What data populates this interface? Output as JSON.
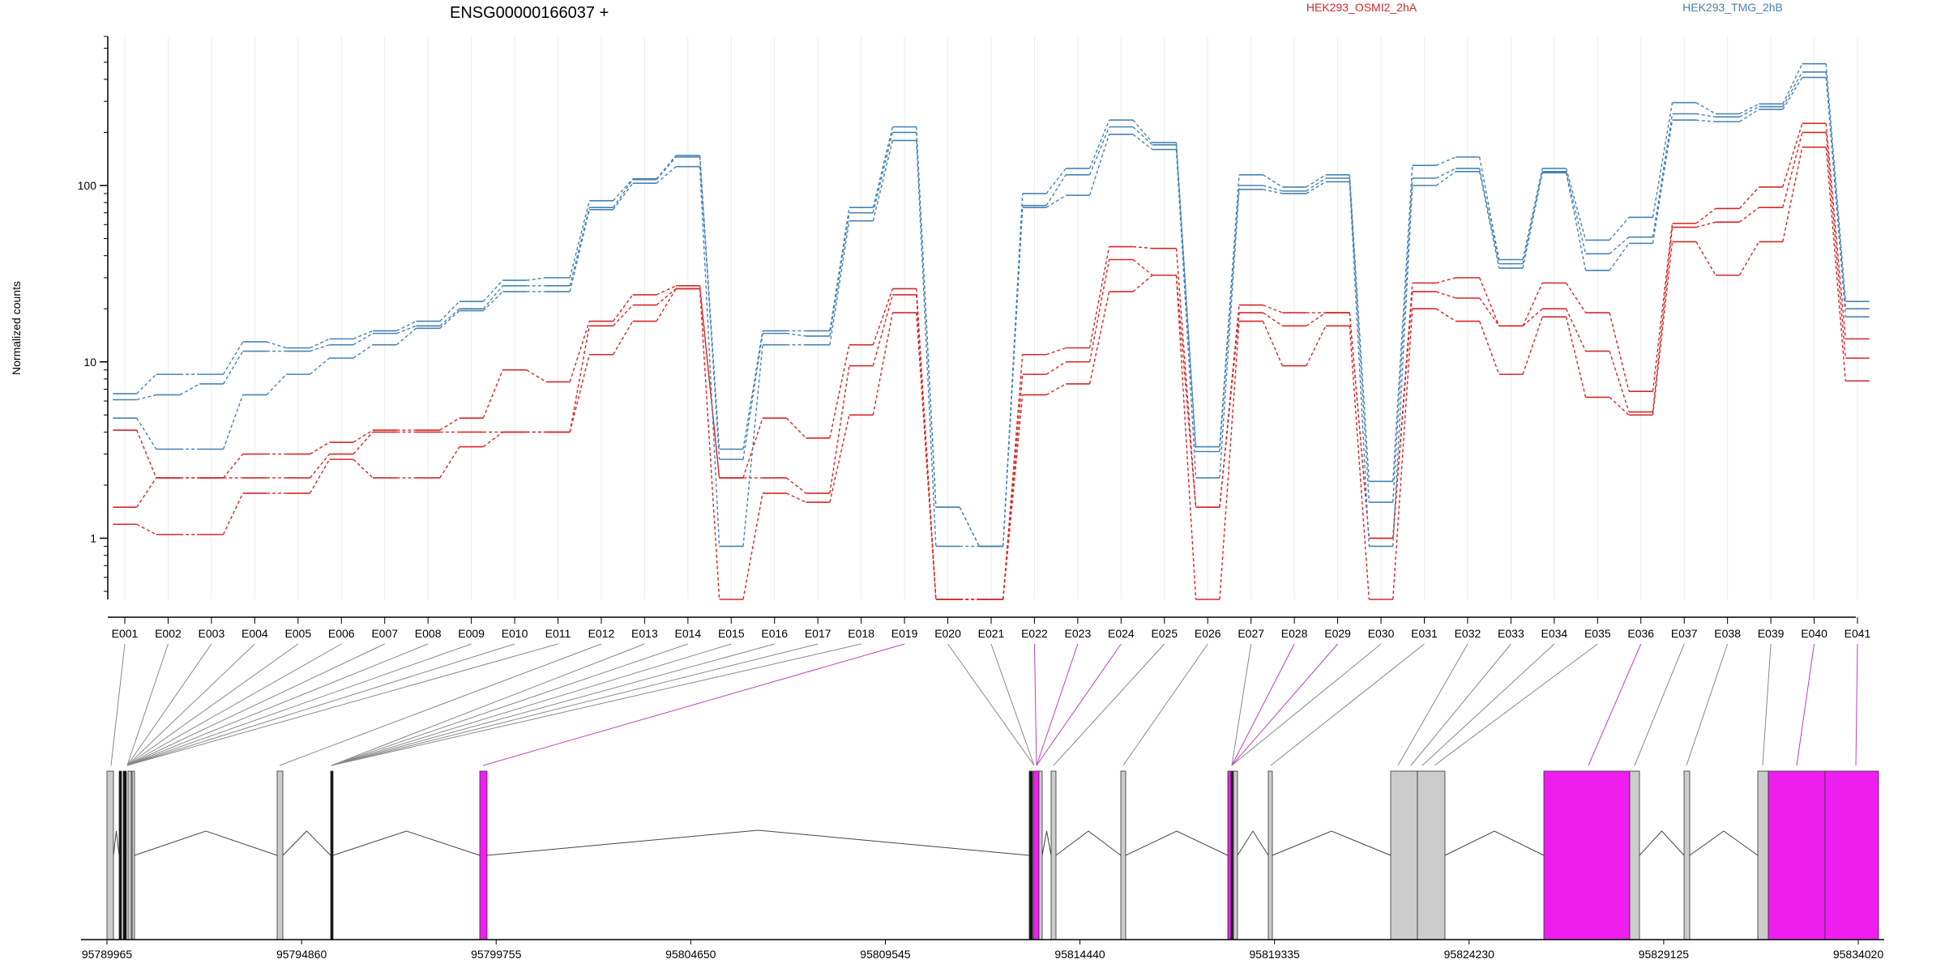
{
  "chart_data": {
    "type": "line",
    "title": "ENSG00000166037 +",
    "ylabel": "Normalized counts",
    "yscale": "log",
    "ylim": [
      0.45,
      700
    ],
    "yticks": [
      "1",
      "10",
      "100"
    ],
    "legend_placement": "top",
    "colors": {
      "HEK293_OSMI2_2hA": "#d62728",
      "HEK293_TMG_2hB": "#4682b4",
      "highlight_exon": "#ee1fee",
      "exon": "#cccccc"
    },
    "categories": [
      "E001",
      "E002",
      "E003",
      "E004",
      "E005",
      "E006",
      "E007",
      "E008",
      "E009",
      "E010",
      "E011",
      "E012",
      "E013",
      "E014",
      "E015",
      "E016",
      "E017",
      "E018",
      "E019",
      "E020",
      "E021",
      "E022",
      "E023",
      "E024",
      "E025",
      "E026",
      "E027",
      "E028",
      "E029",
      "E030",
      "E031",
      "E032",
      "E033",
      "E034",
      "E035",
      "E036",
      "E037",
      "E038",
      "E039",
      "E040",
      "E041"
    ],
    "series": [
      {
        "name": "HEK293_OSMI2_2hA",
        "values": [
          1.2,
          1.05,
          1.05,
          1.8,
          1.8,
          2.8,
          2.2,
          2.2,
          3.3,
          4,
          4,
          11,
          17,
          26,
          0.45,
          1.8,
          1.6,
          5,
          19,
          0.45,
          0.45,
          6.5,
          7.5,
          25,
          31,
          0.45,
          17,
          9.5,
          16,
          0.45,
          20,
          17,
          8.5,
          18,
          6.3,
          5,
          48,
          31,
          48,
          165,
          7.8
        ]
      },
      {
        "name": "HEK293_OSMI2_2hA",
        "values": [
          1.5,
          2.2,
          2.2,
          2.2,
          2.2,
          3.0,
          4.0,
          4.0,
          4.0,
          4.0,
          4.0,
          16,
          21,
          26,
          2.2,
          2.2,
          1.8,
          9.5,
          24,
          0.45,
          0.45,
          8.5,
          10,
          38,
          31,
          1.5,
          19,
          16,
          19,
          1,
          25,
          23,
          16,
          20,
          11.5,
          5.2,
          58,
          62,
          75,
          200,
          10.5
        ]
      },
      {
        "name": "HEK293_OSMI2_2hA",
        "values": [
          4.1,
          2.2,
          2.2,
          3.0,
          3.0,
          3.5,
          4.1,
          4.1,
          4.8,
          9,
          7.7,
          17,
          24,
          27,
          2.2,
          4.8,
          3.7,
          12.5,
          26,
          0.45,
          0.45,
          11,
          12,
          45,
          44,
          1.5,
          21,
          19,
          19,
          1,
          28,
          30,
          16,
          28,
          19,
          6.8,
          61,
          74,
          98,
          225,
          13.5
        ]
      },
      {
        "name": "HEK293_TMG_2hB",
        "values": [
          4.8,
          3.2,
          3.2,
          6.5,
          8.5,
          10.5,
          12.5,
          15.5,
          19.5,
          25,
          25,
          73,
          103,
          128,
          0.9,
          12.5,
          12.5,
          63,
          180,
          0.9,
          0.9,
          75,
          88,
          195,
          160,
          2.2,
          95,
          90,
          105,
          0.9,
          100,
          120,
          34,
          118,
          33,
          47,
          235,
          230,
          270,
          410,
          18
        ]
      },
      {
        "name": "HEK293_TMG_2hB",
        "values": [
          6.1,
          6.5,
          7.5,
          11.5,
          11.5,
          12.5,
          14.5,
          16,
          20,
          27,
          27,
          75,
          108,
          145,
          2.8,
          14.5,
          14,
          70,
          200,
          1.5,
          0.9,
          77,
          115,
          215,
          170,
          3.1,
          100,
          93,
          110,
          1.6,
          110,
          125,
          36,
          120,
          41,
          51,
          255,
          245,
          280,
          440,
          20
        ]
      },
      {
        "name": "HEK293_TMG_2hB",
        "values": [
          6.6,
          8.5,
          8.5,
          13,
          12,
          13.5,
          15,
          17,
          22,
          29,
          30,
          82,
          109,
          148,
          3.2,
          15,
          15,
          75,
          215,
          1.5,
          0.9,
          90,
          125,
          235,
          175,
          3.3,
          115,
          98,
          115,
          2.1,
          130,
          145,
          38,
          125,
          49,
          66,
          295,
          255,
          290,
          490,
          22
        ]
      }
    ],
    "gene_model": {
      "genomic_axis_ticks": [
        "95789965",
        "95794860",
        "95799755",
        "95804650",
        "95809545",
        "95814440",
        "95819335",
        "95824230",
        "95829125",
        "95834020"
      ]
    }
  }
}
